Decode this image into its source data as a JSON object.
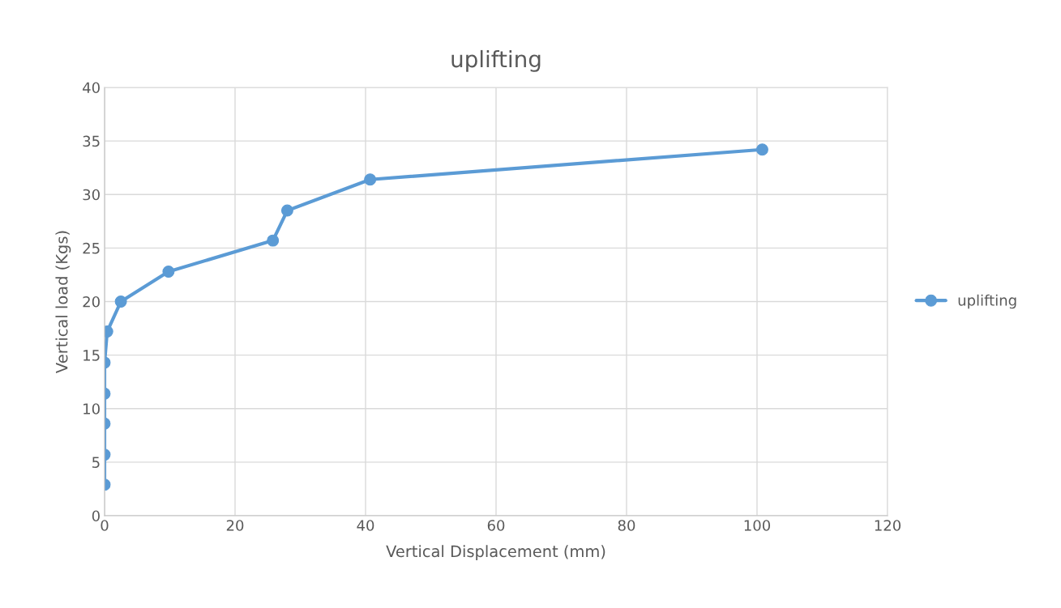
{
  "chart_data": {
    "type": "line",
    "title": "uplifting",
    "xlabel": "Vertical Displacement (mm)",
    "ylabel": "Vertical load (Kgs)",
    "x": [
      0,
      0,
      0,
      0,
      0,
      0.4,
      2.5,
      9.8,
      25.8,
      28,
      40.7,
      100.8
    ],
    "series": [
      {
        "name": "uplifting",
        "color": "#5b9bd5",
        "values": [
          2.9,
          5.7,
          8.6,
          11.4,
          14.3,
          17.2,
          20.0,
          22.8,
          25.7,
          28.5,
          31.4,
          34.2
        ]
      }
    ],
    "xlim": [
      0,
      120
    ],
    "xticks": [
      0,
      20,
      40,
      60,
      80,
      100,
      120
    ],
    "ylim": [
      0,
      40
    ],
    "yticks": [
      0,
      5,
      10,
      15,
      20,
      25,
      30,
      35,
      40
    ],
    "grid": true,
    "legend": "right",
    "marker": "circle",
    "line_style": "solid"
  }
}
